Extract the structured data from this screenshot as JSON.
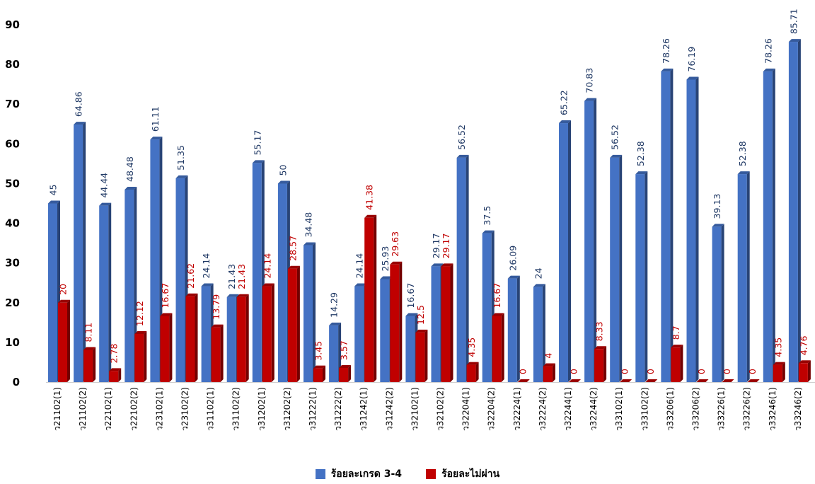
{
  "chart_data": {
    "type": "bar",
    "categories": [
      "ว21102(1)",
      "ว21102(2)",
      "ว22102(1)",
      "ว22102(2)",
      "ว23102(1)",
      "ว23102(2)",
      "ว31102(1)",
      "ว31102(2)",
      "ว31202(1)",
      "ว31202(2)",
      "ว31222(1)",
      "ว31222(2)",
      "ว31242(1)",
      "ว31242(2)",
      "ว32102(1)",
      "ว32102(2)",
      "ว32204(1)",
      "ว32204(2)",
      "ว32224(1)",
      "ว32224(2)",
      "ว32244(1)",
      "ว32244(2)",
      "ว33102(1)",
      "ว33102(2)",
      "ว33206(1)",
      "ว33206(2)",
      "ว33226(1)",
      "ว33226(2)",
      "ว33246(1)",
      "ว33246(2)"
    ],
    "series": [
      {
        "name": "ร้อยละเกรด 3-4",
        "color": "#4472C4",
        "values": [
          45,
          64.86,
          44.44,
          48.48,
          61.11,
          51.35,
          24.14,
          21.43,
          55.17,
          50,
          34.48,
          14.29,
          24.14,
          25.93,
          16.67,
          29.17,
          56.52,
          37.5,
          26.09,
          24,
          65.22,
          70.83,
          56.52,
          52.38,
          78.26,
          76.19,
          39.13,
          52.38,
          78.26,
          85.71
        ]
      },
      {
        "name": "ร้อยละไม่ผ่าน",
        "color": "#C00000",
        "values": [
          20,
          8.11,
          2.78,
          12.12,
          16.67,
          21.62,
          13.79,
          21.43,
          24.14,
          28.57,
          3.45,
          3.57,
          41.38,
          29.63,
          12.5,
          29.17,
          4.35,
          16.67,
          0,
          4,
          0,
          8.33,
          0,
          0,
          8.7,
          0,
          0,
          0,
          4.35,
          4.76
        ]
      }
    ],
    "yticks": [
      "0",
      "10",
      "20",
      "30",
      "40",
      "50",
      "60",
      "70",
      "80",
      "90"
    ],
    "ylim": [
      0,
      90
    ],
    "xlabel": "",
    "ylabel": "",
    "grid": false,
    "legend_position": "bottom"
  }
}
